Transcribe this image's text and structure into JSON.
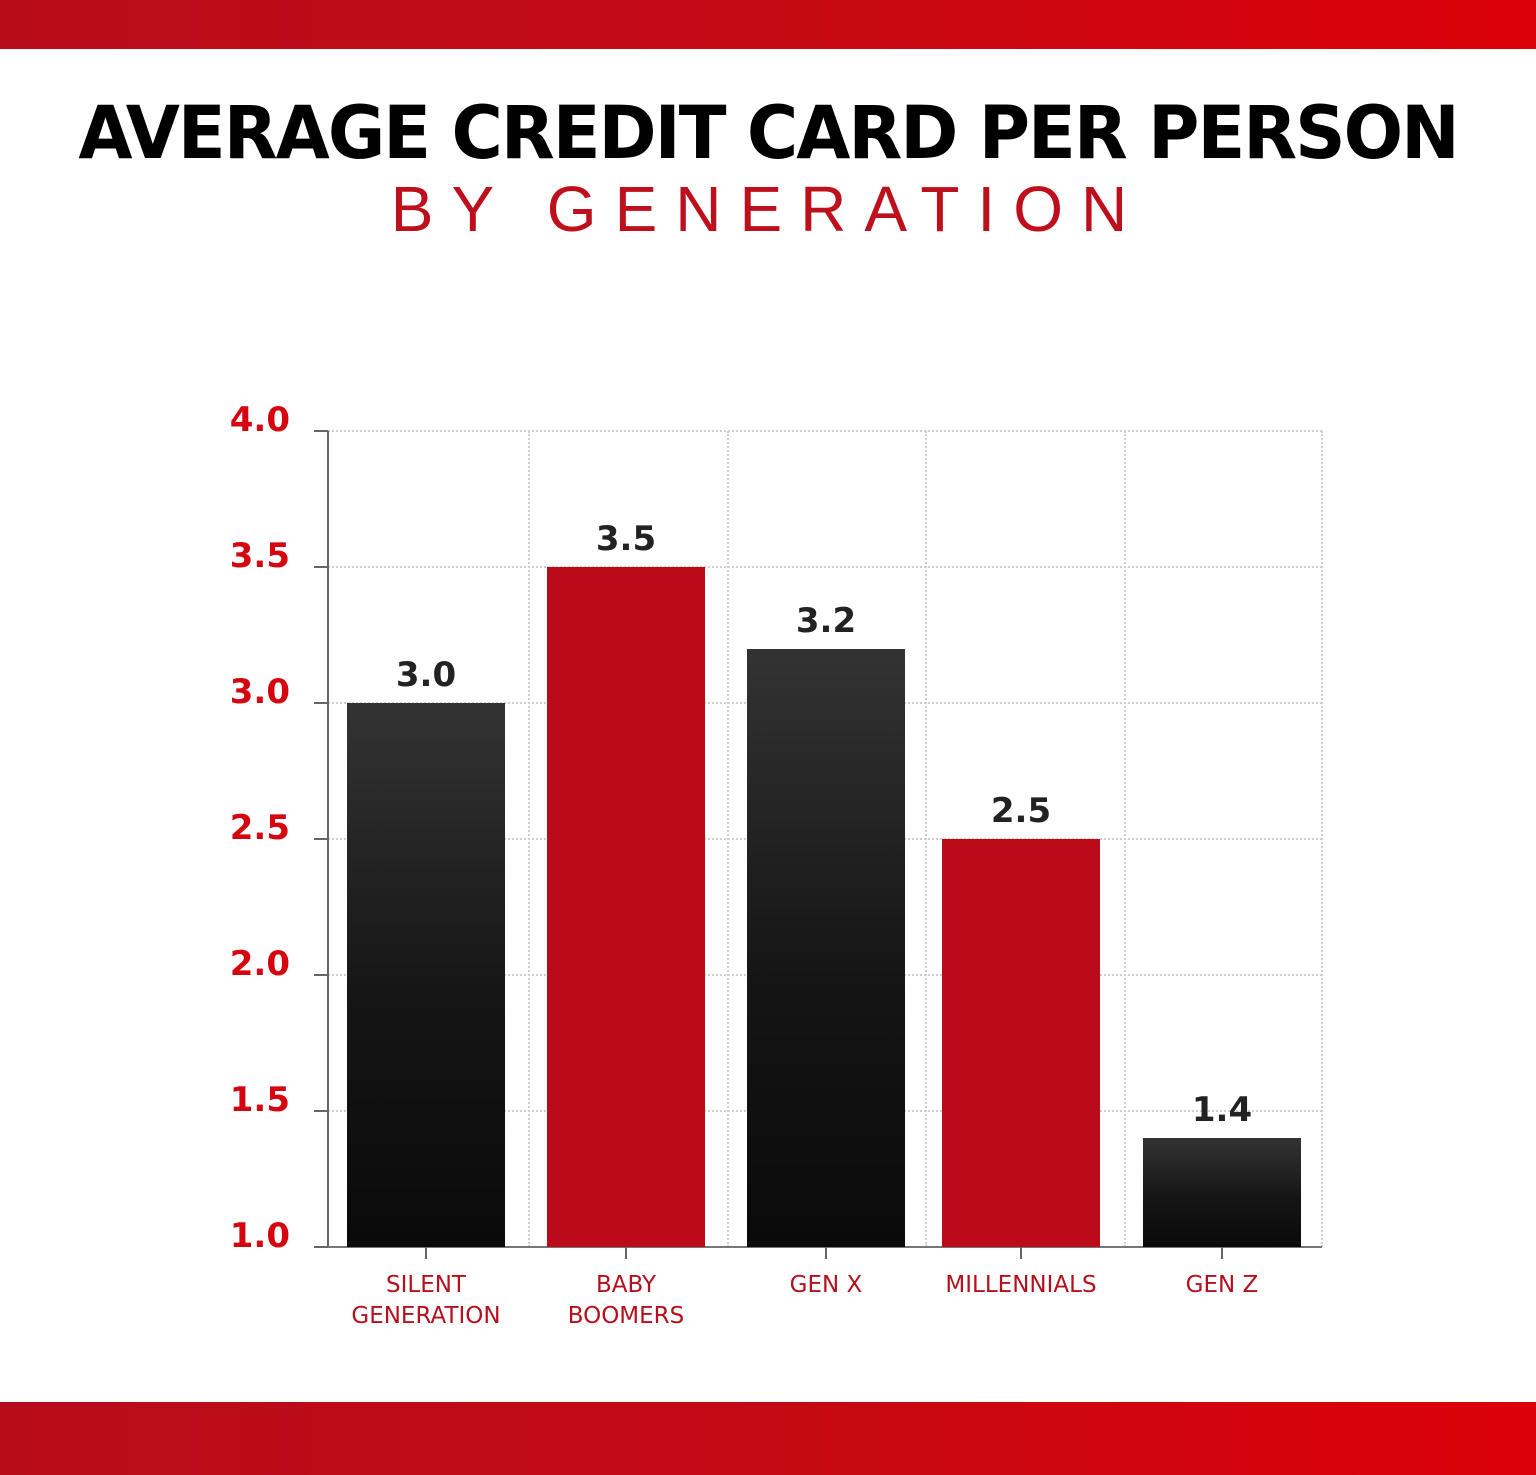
{
  "header": {
    "title": "AVERAGE CREDIT CARD PER PERSON",
    "subtitle": "BY GENERATION"
  },
  "colors": {
    "accent_red": "#bb0a18",
    "band_red": "#d40009",
    "axis_label_red": "#d5050f",
    "dark_bar": "#111111"
  },
  "chart_data": {
    "type": "bar",
    "title": "AVERAGE CREDIT CARD PER PERSON",
    "subtitle": "BY GENERATION",
    "xlabel": "",
    "ylabel": "",
    "categories": [
      "SILENT GENERATION",
      "BABY BOOMERS",
      "GEN X",
      "MILLENNIALS",
      "GEN Z"
    ],
    "category_lines": [
      [
        "SILENT",
        "GENERATION"
      ],
      [
        "BABY",
        "BOOMERS"
      ],
      [
        "GEN X"
      ],
      [
        "MILLENNIALS"
      ],
      [
        "GEN Z"
      ]
    ],
    "values": [
      3.0,
      3.5,
      3.2,
      2.5,
      1.4
    ],
    "value_labels": [
      "3.0",
      "3.5",
      "3.2",
      "2.5",
      "1.4"
    ],
    "bar_colors": [
      "#111111",
      "#bb0a18",
      "#111111",
      "#bb0a18",
      "#111111"
    ],
    "ylim": [
      1.0,
      4.0
    ],
    "yticks": [
      "4.0",
      "3.5",
      "3.0",
      "2.5",
      "2.0",
      "1.5",
      "1.0"
    ],
    "grid": true,
    "legend": null
  }
}
